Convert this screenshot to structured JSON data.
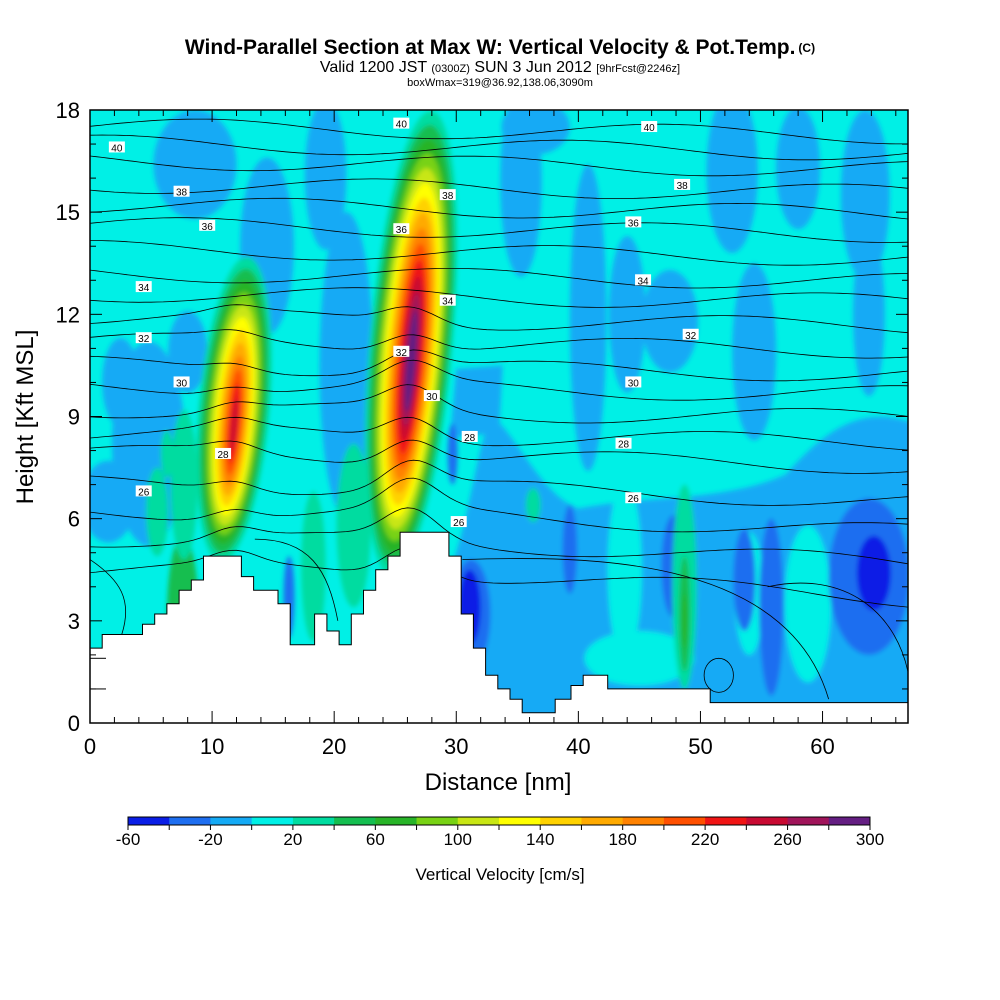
{
  "header": {
    "title": "Wind-Parallel Section at Max W: Vertical Velocity & Pot.Temp.",
    "copyright": "(C)",
    "valid_a": "Valid 1200 JST",
    "valid_b": "(0300Z)",
    "valid_c": "SUN 3 Jun 2012",
    "valid_d": "[9hrFcst@2246z]",
    "box": "boxWmax=319@36.92,138.06,3090m"
  },
  "chart_data": {
    "type": "heatmap",
    "xlabel": "Distance [nm]",
    "ylabel": "Height [Kft MSL]",
    "xlim": [
      0,
      67
    ],
    "ylim": [
      0,
      18
    ],
    "xticks": [
      "0",
      "10",
      "20",
      "30",
      "40",
      "50",
      "60"
    ],
    "yticks": [
      "0",
      "3",
      "6",
      "9",
      "12",
      "15",
      "18"
    ],
    "colorbar": {
      "label": "Vertical Velocity [cm/s]",
      "tick_labels": [
        "-60",
        "-20",
        "20",
        "60",
        "100",
        "140",
        "180",
        "220",
        "260",
        "300"
      ],
      "levels": [
        -60,
        -40,
        -20,
        0,
        20,
        40,
        60,
        80,
        100,
        120,
        140,
        160,
        180,
        200,
        220,
        240,
        260,
        280,
        300
      ],
      "colors": [
        "#0a1ee6",
        "#1e6ef0",
        "#14aaf5",
        "#00f0e6",
        "#00dca0",
        "#14be50",
        "#28b428",
        "#78d214",
        "#c8e614",
        "#ffff00",
        "#ffd200",
        "#ffaa00",
        "#ff8200",
        "#ff5000",
        "#f01414",
        "#c80a32",
        "#a0145a",
        "#641e82"
      ]
    },
    "updrafts": [
      {
        "x": 11.8,
        "z_base": 6.0,
        "z_top": 13.2,
        "peak_cm_s": 240
      },
      {
        "x": 26.3,
        "z_base": 5.6,
        "z_top": 17.5,
        "peak_cm_s": 300
      }
    ],
    "theta_labels": [
      {
        "x": 2.2,
        "y": 16.9,
        "text": "40"
      },
      {
        "x": 25.5,
        "y": 17.6,
        "text": "40"
      },
      {
        "x": 45.8,
        "y": 17.5,
        "text": "40"
      },
      {
        "x": 7.5,
        "y": 15.6,
        "text": "38"
      },
      {
        "x": 29.3,
        "y": 15.5,
        "text": "38"
      },
      {
        "x": 48.5,
        "y": 15.8,
        "text": "38"
      },
      {
        "x": 9.6,
        "y": 14.6,
        "text": "36"
      },
      {
        "x": 25.5,
        "y": 14.5,
        "text": "36"
      },
      {
        "x": 44.5,
        "y": 14.7,
        "text": "36"
      },
      {
        "x": 4.4,
        "y": 12.8,
        "text": "34"
      },
      {
        "x": 29.3,
        "y": 12.4,
        "text": "34"
      },
      {
        "x": 45.3,
        "y": 13.0,
        "text": "34"
      },
      {
        "x": 4.4,
        "y": 11.3,
        "text": "32"
      },
      {
        "x": 25.5,
        "y": 10.9,
        "text": "32"
      },
      {
        "x": 49.2,
        "y": 11.4,
        "text": "32"
      },
      {
        "x": 7.5,
        "y": 10.0,
        "text": "30"
      },
      {
        "x": 28.0,
        "y": 9.6,
        "text": "30"
      },
      {
        "x": 44.5,
        "y": 10.0,
        "text": "30"
      },
      {
        "x": 10.9,
        "y": 7.9,
        "text": "28"
      },
      {
        "x": 31.1,
        "y": 8.4,
        "text": "28"
      },
      {
        "x": 43.7,
        "y": 8.2,
        "text": "28"
      },
      {
        "x": 4.4,
        "y": 6.8,
        "text": "26"
      },
      {
        "x": 30.2,
        "y": 5.9,
        "text": "26"
      },
      {
        "x": 44.5,
        "y": 6.6,
        "text": "26"
      }
    ],
    "terrain": [
      [
        0,
        2.2
      ],
      [
        1,
        2.2
      ],
      [
        1,
        2.6
      ],
      [
        4.3,
        2.6
      ],
      [
        4.3,
        2.9
      ],
      [
        5.3,
        2.9
      ],
      [
        5.3,
        3.2
      ],
      [
        6.3,
        3.2
      ],
      [
        6.3,
        3.5
      ],
      [
        7.3,
        3.5
      ],
      [
        7.3,
        3.9
      ],
      [
        8.3,
        3.9
      ],
      [
        8.3,
        4.2
      ],
      [
        9.3,
        4.2
      ],
      [
        9.3,
        4.9
      ],
      [
        11.5,
        4.9
      ],
      [
        11.5,
        4.9
      ],
      [
        12.4,
        4.9
      ],
      [
        12.4,
        4.3
      ],
      [
        13.4,
        4.3
      ],
      [
        13.4,
        3.9
      ],
      [
        15.4,
        3.9
      ],
      [
        15.4,
        3.5
      ],
      [
        16.4,
        3.5
      ],
      [
        16.4,
        2.3
      ],
      [
        18.4,
        2.3
      ],
      [
        18.4,
        3.2
      ],
      [
        19.4,
        3.2
      ],
      [
        19.4,
        2.7
      ],
      [
        20.4,
        2.7
      ],
      [
        20.4,
        2.3
      ],
      [
        21.4,
        2.3
      ],
      [
        21.4,
        3.2
      ],
      [
        22.4,
        3.2
      ],
      [
        22.4,
        3.9
      ],
      [
        23.4,
        3.9
      ],
      [
        23.4,
        4.5
      ],
      [
        24.4,
        4.5
      ],
      [
        24.4,
        4.9
      ],
      [
        25.4,
        4.9
      ],
      [
        25.4,
        5.6
      ],
      [
        29.4,
        5.6
      ],
      [
        29.4,
        4.9
      ],
      [
        30.4,
        4.9
      ],
      [
        30.4,
        3.2
      ],
      [
        31.4,
        3.2
      ],
      [
        31.4,
        2.2
      ],
      [
        32.4,
        2.2
      ],
      [
        32.4,
        1.4
      ],
      [
        33.4,
        1.4
      ],
      [
        33.4,
        1.0
      ],
      [
        34.4,
        1.0
      ],
      [
        34.4,
        0.7
      ],
      [
        35.4,
        0.7
      ],
      [
        35.4,
        0.3
      ],
      [
        38.1,
        0.3
      ],
      [
        38.1,
        0.7
      ],
      [
        39.4,
        0.7
      ],
      [
        39.4,
        1.1
      ],
      [
        40.4,
        1.1
      ],
      [
        40.4,
        1.4
      ],
      [
        42.4,
        1.4
      ],
      [
        42.4,
        1.0
      ],
      [
        50.8,
        1.0
      ],
      [
        50.8,
        0.6
      ],
      [
        67,
        0.6
      ]
    ],
    "reference_lines_y": [
      1.0,
      1.9
    ]
  }
}
